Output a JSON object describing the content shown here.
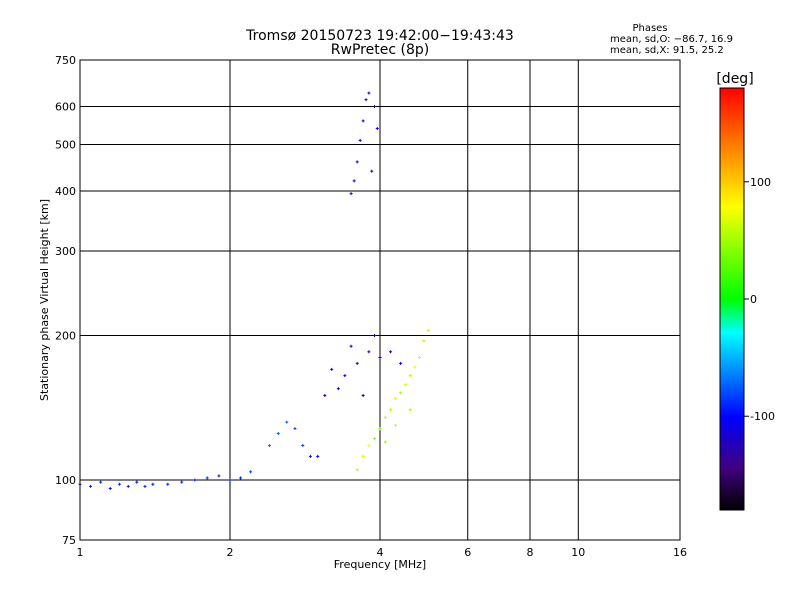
{
  "chart_data": {
    "type": "scatter",
    "title": "Tromsø 20150723 19:42:00−19:43:43",
    "subtitle": "RwPretec (8p)",
    "xlabel": "Frequency [MHz]",
    "ylabel": "Stationary phase Virtual Height [km]",
    "x_scale": "log",
    "y_scale": "log",
    "xlim": [
      1,
      16
    ],
    "ylim": [
      75,
      750
    ],
    "x_ticks": [
      1,
      2,
      4,
      6,
      8,
      10,
      16
    ],
    "y_ticks": [
      75,
      100,
      200,
      300,
      400,
      500,
      600,
      750
    ],
    "grid": true,
    "phases_title": "Phases",
    "phases_o": "mean, sd,O: −86.7, 16.9",
    "phases_x": "mean, sd,X:  91.5, 25.2",
    "colorbar": {
      "label": "[deg]",
      "range": [
        -180,
        180
      ],
      "ticks": [
        100,
        0,
        -100
      ]
    },
    "series": [
      {
        "points": [
          [
            1.0,
            98,
            -95
          ],
          [
            1.05,
            97,
            -92
          ],
          [
            1.1,
            99,
            -90
          ],
          [
            1.15,
            96,
            -95
          ],
          [
            1.2,
            98,
            -88
          ],
          [
            1.25,
            97,
            -93
          ],
          [
            1.3,
            99,
            -96
          ],
          [
            1.35,
            97,
            -90
          ],
          [
            1.4,
            98,
            -94
          ],
          [
            1.5,
            98,
            -92
          ],
          [
            1.6,
            99,
            -90
          ],
          [
            1.7,
            100,
            -95
          ],
          [
            1.8,
            101,
            -88
          ],
          [
            1.9,
            102,
            -92
          ],
          [
            2.0,
            100,
            -95
          ],
          [
            2.1,
            101,
            -90
          ],
          [
            2.2,
            104,
            -85
          ],
          [
            2.4,
            118,
            -70
          ],
          [
            2.5,
            125,
            -72
          ],
          [
            2.6,
            132,
            -75
          ],
          [
            2.7,
            128,
            -78
          ],
          [
            2.8,
            118,
            -80
          ],
          [
            2.9,
            112,
            -95
          ],
          [
            3.0,
            112,
            -110
          ],
          [
            3.1,
            150,
            -110
          ],
          [
            3.2,
            170,
            -115
          ],
          [
            3.3,
            155,
            -110
          ],
          [
            3.4,
            165,
            -112
          ],
          [
            3.5,
            190,
            -115
          ],
          [
            3.6,
            175,
            -110
          ],
          [
            3.7,
            150,
            -108
          ],
          [
            3.8,
            185,
            -112
          ],
          [
            3.9,
            200,
            -115
          ],
          [
            4.0,
            180,
            -110
          ],
          [
            4.2,
            185,
            -112
          ],
          [
            4.4,
            175,
            -110
          ],
          [
            3.5,
            395,
            -120
          ],
          [
            3.55,
            420,
            -118
          ],
          [
            3.6,
            460,
            -115
          ],
          [
            3.65,
            510,
            -112
          ],
          [
            3.7,
            560,
            -115
          ],
          [
            3.75,
            620,
            -118
          ],
          [
            3.8,
            640,
            -120
          ],
          [
            3.9,
            600,
            -115
          ],
          [
            3.95,
            540,
            -112
          ],
          [
            3.85,
            440,
            -114
          ]
        ]
      },
      {
        "points": [
          [
            3.6,
            105,
            55
          ],
          [
            3.7,
            112,
            65
          ],
          [
            3.8,
            118,
            75
          ],
          [
            3.9,
            122,
            45
          ],
          [
            4.0,
            128,
            30
          ],
          [
            4.1,
            135,
            60
          ],
          [
            4.2,
            140,
            55
          ],
          [
            4.3,
            148,
            70
          ],
          [
            4.4,
            152,
            50
          ],
          [
            4.5,
            158,
            65
          ],
          [
            4.6,
            165,
            60
          ],
          [
            4.7,
            172,
            70
          ],
          [
            4.8,
            180,
            62
          ],
          [
            4.9,
            195,
            55
          ],
          [
            5.0,
            205,
            58
          ],
          [
            4.1,
            120,
            48
          ],
          [
            4.3,
            130,
            60
          ],
          [
            4.6,
            140,
            52
          ]
        ]
      }
    ]
  }
}
